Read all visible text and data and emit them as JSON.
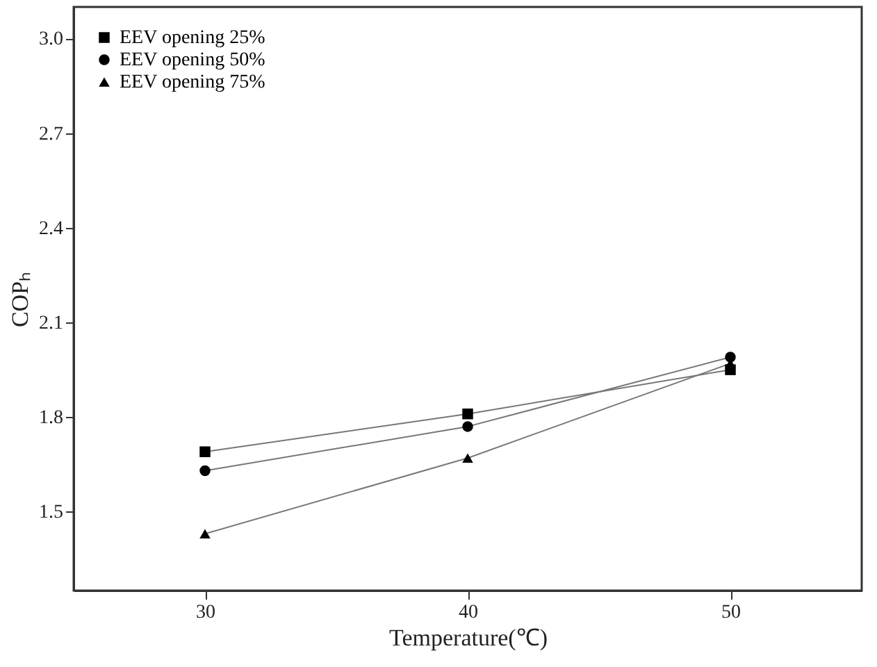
{
  "chart_data": {
    "type": "line",
    "xlabel": "Temperature(℃)",
    "ylabel": "COPₕ",
    "x": [
      30,
      40,
      50
    ],
    "series": [
      {
        "name": "EEV opening 25%",
        "color": "#000000",
        "marker": "square",
        "values": [
          1.69,
          1.81,
          1.95
        ]
      },
      {
        "name": "EEV opening 50%",
        "color": "#000000",
        "marker": "circle",
        "values": [
          1.63,
          1.77,
          1.99
        ]
      },
      {
        "name": "EEV opening 75%",
        "color": "#000000",
        "marker": "triangle",
        "values": [
          1.43,
          1.67,
          1.97
        ]
      }
    ],
    "xlim": [
      25,
      55
    ],
    "xticks": [
      30,
      40,
      50
    ],
    "ylim": [
      1.25,
      3.1
    ],
    "yticks": [
      1.5,
      1.8,
      2.1,
      2.4,
      2.7,
      {
        "value": 3.0,
        "label": "3.0"
      }
    ],
    "legend": "top left",
    "grid": false,
    "line_style": "solid"
  }
}
